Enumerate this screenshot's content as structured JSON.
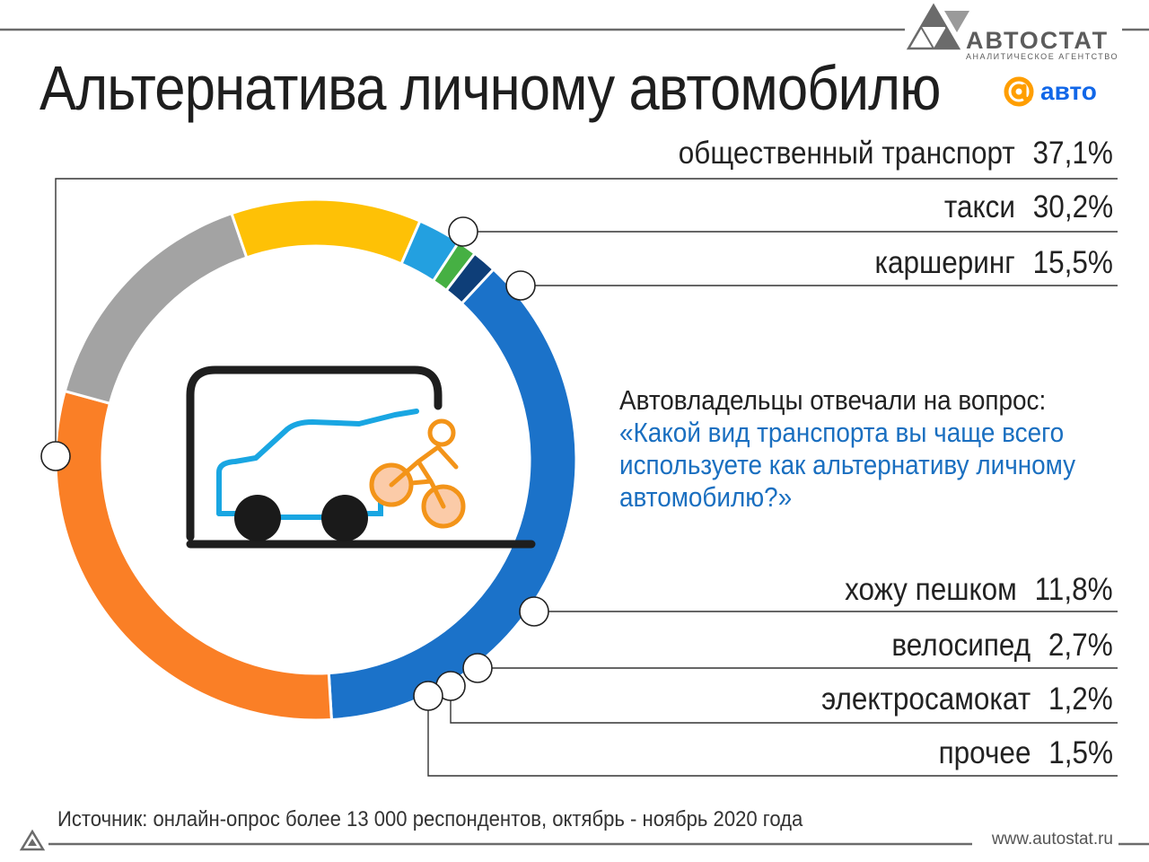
{
  "header": {
    "title": "Альтернатива личному автомобилю",
    "brand_name": "АВТОСТАТ",
    "brand_sub": "АНАЛИТИЧЕСКОЕ АГЕНТСТВО",
    "partner_logo_text": "авто",
    "partner_logo_icon": "at-sign-icon"
  },
  "question": {
    "line1": "Автовладельцы отвечали на вопрос:",
    "line2": "«Какой вид транспорта вы чаще всего",
    "line3": "используете как альтернативу личному",
    "line4": "автомобилю?»"
  },
  "footer": {
    "source": "Источник: онлайн-опрос более 13 000 респондентов, октябрь - ноябрь 2020 года",
    "site": "www.autostat.ru"
  },
  "chart_data": {
    "type": "pie",
    "variant": "donut",
    "title": "Альтернатива личному автомобилю",
    "categories": [
      {
        "name": "общественный транспорт",
        "label": "37,1%",
        "value": 37.1,
        "color": "#1b72c9"
      },
      {
        "name": "такси",
        "label": "30,2%",
        "value": 30.2,
        "color": "#fa7f26"
      },
      {
        "name": "каршеринг",
        "label": "15,5%",
        "value": 15.5,
        "color": "#a3a3a3"
      },
      {
        "name": "хожу пешком",
        "label": "11,8%",
        "value": 11.8,
        "color": "#fec106"
      },
      {
        "name": "велосипед",
        "label": "2,7%",
        "value": 2.7,
        "color": "#23a0e0"
      },
      {
        "name": "электросамокат",
        "label": "1,2%",
        "value": 1.2,
        "color": "#46b043"
      },
      {
        "name": "прочее",
        "label": "1,5%",
        "value": 1.5,
        "color": "#0e3e78"
      }
    ],
    "legend": "right",
    "center_icon": "car-and-bicycle-icon"
  }
}
